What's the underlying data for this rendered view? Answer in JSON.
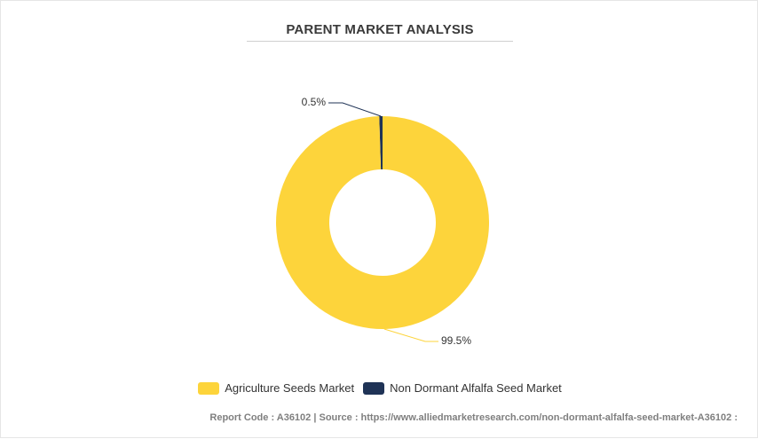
{
  "title": "PARENT MARKET ANALYSIS",
  "chart_data": {
    "type": "pie",
    "donut": true,
    "title": "PARENT MARKET ANALYSIS",
    "categories": [
      "Agriculture Seeds Market",
      "Non Dormant Alfalfa Seed Market"
    ],
    "values": [
      99.5,
      0.5
    ],
    "labels": [
      "99.5%",
      "0.5%"
    ],
    "colors": [
      "#fdd43b",
      "#1f3356"
    ],
    "legend_position": "bottom"
  },
  "legend": {
    "items": [
      {
        "label": "Agriculture Seeds Market",
        "color": "#fdd43b"
      },
      {
        "label": "Non Dormant Alfalfa Seed Market",
        "color": "#1f3356"
      }
    ]
  },
  "footer": {
    "text": "Report Code : A36102  |  Source : https://www.alliedmarketresearch.com/non-dormant-alfalfa-seed-market-A36102 :"
  }
}
